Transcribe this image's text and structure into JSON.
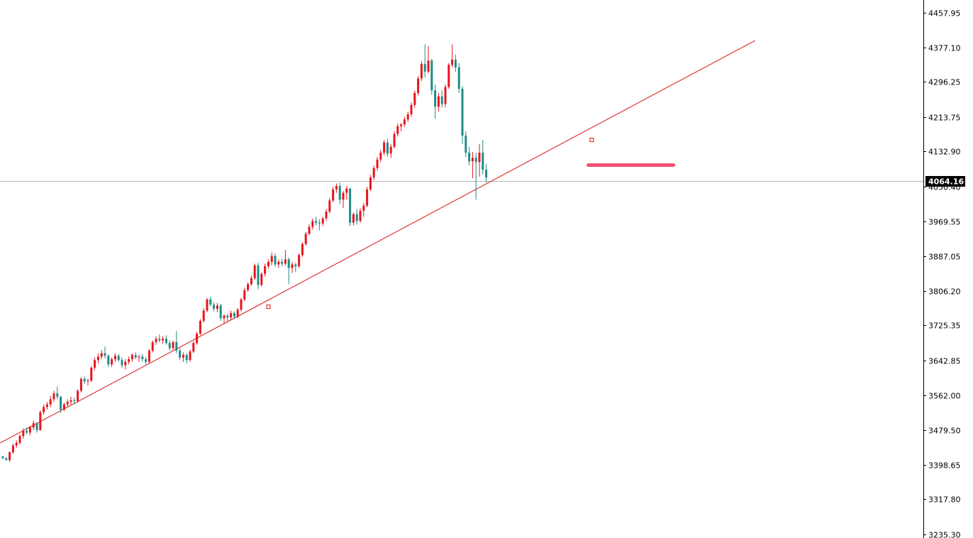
{
  "chart_data": {
    "type": "candlestick",
    "title": "",
    "xlabel": "",
    "ylabel": "",
    "ylim": [
      3235.3,
      4457.95
    ],
    "y_ticks": [
      "4457.95",
      "4377.10",
      "4296.25",
      "4213.75",
      "4132.90",
      "4050.40",
      "3969.55",
      "3887.05",
      "3806.20",
      "3725.35",
      "3642.85",
      "3562.00",
      "3479.50",
      "3398.65",
      "3317.80",
      "3235.30"
    ],
    "current_price": "4064.16",
    "grid": false,
    "colors": {
      "up": "#e8141c",
      "down": "#1e8c87",
      "trendline": "#d81414",
      "support": "#f0506e",
      "price_line": "#b4b4b4",
      "tag_bg": "#000000"
    },
    "candles": [
      [
        3418,
        3420,
        3412,
        3414
      ],
      [
        3414,
        3416,
        3408,
        3410
      ],
      [
        3410,
        3430,
        3405,
        3428
      ],
      [
        3428,
        3448,
        3424,
        3444
      ],
      [
        3444,
        3456,
        3438,
        3450
      ],
      [
        3450,
        3470,
        3446,
        3466
      ],
      [
        3466,
        3484,
        3460,
        3478
      ],
      [
        3478,
        3486,
        3470,
        3474
      ],
      [
        3474,
        3490,
        3468,
        3486
      ],
      [
        3486,
        3502,
        3480,
        3496
      ],
      [
        3496,
        3498,
        3474,
        3480
      ],
      [
        3480,
        3526,
        3478,
        3522
      ],
      [
        3522,
        3540,
        3516,
        3534
      ],
      [
        3534,
        3546,
        3528,
        3540
      ],
      [
        3540,
        3560,
        3534,
        3552
      ],
      [
        3552,
        3572,
        3546,
        3566
      ],
      [
        3566,
        3582,
        3552,
        3558
      ],
      [
        3558,
        3560,
        3520,
        3528
      ],
      [
        3528,
        3544,
        3524,
        3540
      ],
      [
        3540,
        3552,
        3534,
        3546
      ],
      [
        3546,
        3558,
        3540,
        3550
      ],
      [
        3550,
        3556,
        3540,
        3548
      ],
      [
        3548,
        3576,
        3544,
        3572
      ],
      [
        3572,
        3604,
        3568,
        3600
      ],
      [
        3600,
        3606,
        3588,
        3594
      ],
      [
        3594,
        3600,
        3584,
        3596
      ],
      [
        3596,
        3630,
        3592,
        3626
      ],
      [
        3626,
        3650,
        3620,
        3644
      ],
      [
        3644,
        3660,
        3636,
        3652
      ],
      [
        3652,
        3668,
        3646,
        3660
      ],
      [
        3660,
        3676,
        3648,
        3654
      ],
      [
        3654,
        3658,
        3628,
        3634
      ],
      [
        3634,
        3650,
        3628,
        3646
      ],
      [
        3646,
        3660,
        3640,
        3654
      ],
      [
        3654,
        3658,
        3640,
        3644
      ],
      [
        3644,
        3650,
        3626,
        3632
      ],
      [
        3632,
        3646,
        3622,
        3640
      ],
      [
        3640,
        3652,
        3634,
        3646
      ],
      [
        3646,
        3660,
        3640,
        3656
      ],
      [
        3656,
        3662,
        3646,
        3650
      ],
      [
        3650,
        3656,
        3640,
        3652
      ],
      [
        3652,
        3658,
        3640,
        3646
      ],
      [
        3646,
        3652,
        3634,
        3640
      ],
      [
        3640,
        3670,
        3636,
        3666
      ],
      [
        3666,
        3690,
        3662,
        3686
      ],
      [
        3686,
        3700,
        3680,
        3694
      ],
      [
        3694,
        3704,
        3686,
        3690
      ],
      [
        3690,
        3700,
        3682,
        3694
      ],
      [
        3694,
        3702,
        3680,
        3684
      ],
      [
        3684,
        3690,
        3666,
        3672
      ],
      [
        3672,
        3690,
        3668,
        3686
      ],
      [
        3686,
        3712,
        3660,
        3666
      ],
      [
        3666,
        3672,
        3644,
        3650
      ],
      [
        3650,
        3662,
        3640,
        3656
      ],
      [
        3656,
        3660,
        3636,
        3644
      ],
      [
        3644,
        3668,
        3640,
        3664
      ],
      [
        3664,
        3688,
        3660,
        3684
      ],
      [
        3684,
        3710,
        3680,
        3706
      ],
      [
        3706,
        3740,
        3702,
        3736
      ],
      [
        3736,
        3766,
        3732,
        3760
      ],
      [
        3760,
        3790,
        3756,
        3786
      ],
      [
        3786,
        3792,
        3770,
        3774
      ],
      [
        3774,
        3780,
        3758,
        3764
      ],
      [
        3764,
        3778,
        3756,
        3772
      ],
      [
        3772,
        3776,
        3736,
        3742
      ],
      [
        3742,
        3752,
        3728,
        3748
      ],
      [
        3748,
        3752,
        3734,
        3744
      ],
      [
        3744,
        3760,
        3738,
        3754
      ],
      [
        3754,
        3758,
        3740,
        3746
      ],
      [
        3746,
        3766,
        3742,
        3762
      ],
      [
        3762,
        3790,
        3758,
        3786
      ],
      [
        3786,
        3814,
        3782,
        3808
      ],
      [
        3808,
        3826,
        3804,
        3822
      ],
      [
        3822,
        3842,
        3818,
        3836
      ],
      [
        3836,
        3870,
        3832,
        3866
      ],
      [
        3866,
        3872,
        3810,
        3820
      ],
      [
        3820,
        3850,
        3816,
        3846
      ],
      [
        3846,
        3870,
        3840,
        3864
      ],
      [
        3864,
        3880,
        3858,
        3874
      ],
      [
        3874,
        3896,
        3866,
        3888
      ],
      [
        3888,
        3894,
        3862,
        3868
      ],
      [
        3868,
        3880,
        3860,
        3874
      ],
      [
        3874,
        3882,
        3864,
        3870
      ],
      [
        3870,
        3902,
        3866,
        3880
      ],
      [
        3880,
        3884,
        3822,
        3860
      ],
      [
        3860,
        3874,
        3848,
        3868
      ],
      [
        3868,
        3872,
        3850,
        3864
      ],
      [
        3864,
        3894,
        3860,
        3890
      ],
      [
        3890,
        3920,
        3886,
        3916
      ],
      [
        3916,
        3944,
        3912,
        3940
      ],
      [
        3940,
        3962,
        3936,
        3956
      ],
      [
        3956,
        3976,
        3950,
        3970
      ],
      [
        3970,
        3980,
        3960,
        3966
      ],
      [
        3966,
        3974,
        3948,
        3964
      ],
      [
        3964,
        3980,
        3958,
        3976
      ],
      [
        3976,
        3998,
        3970,
        3992
      ],
      [
        3992,
        4024,
        3988,
        4018
      ],
      [
        4018,
        4050,
        4014,
        4044
      ],
      [
        4044,
        4058,
        4036,
        4052
      ],
      [
        4052,
        4060,
        4010,
        4020
      ],
      [
        4020,
        4040,
        4000,
        4036
      ],
      [
        4036,
        4052,
        4020,
        4046
      ],
      [
        4046,
        4048,
        3958,
        3966
      ],
      [
        3966,
        3990,
        3960,
        3986
      ],
      [
        3986,
        3998,
        3962,
        3970
      ],
      [
        3970,
        4000,
        3966,
        3994
      ],
      [
        3994,
        4012,
        3980,
        4006
      ],
      [
        4006,
        4050,
        4002,
        4044
      ],
      [
        4044,
        4078,
        4040,
        4072
      ],
      [
        4072,
        4100,
        4066,
        4094
      ],
      [
        4094,
        4120,
        4088,
        4114
      ],
      [
        4114,
        4136,
        4108,
        4130
      ],
      [
        4130,
        4160,
        4124,
        4154
      ],
      [
        4154,
        4162,
        4120,
        4128
      ],
      [
        4128,
        4150,
        4118,
        4144
      ],
      [
        4144,
        4180,
        4140,
        4174
      ],
      [
        4174,
        4198,
        4168,
        4192
      ],
      [
        4192,
        4200,
        4180,
        4196
      ],
      [
        4196,
        4214,
        4190,
        4208
      ],
      [
        4208,
        4226,
        4202,
        4220
      ],
      [
        4220,
        4248,
        4214,
        4242
      ],
      [
        4242,
        4276,
        4236,
        4270
      ],
      [
        4270,
        4310,
        4264,
        4304
      ],
      [
        4304,
        4344,
        4298,
        4338
      ],
      [
        4338,
        4384,
        4306,
        4320
      ],
      [
        4320,
        4380,
        4316,
        4346
      ],
      [
        4346,
        4350,
        4266,
        4276
      ],
      [
        4276,
        4290,
        4210,
        4238
      ],
      [
        4238,
        4270,
        4226,
        4262
      ],
      [
        4262,
        4276,
        4236,
        4244
      ],
      [
        4244,
        4290,
        4236,
        4284
      ],
      [
        4284,
        4340,
        4280,
        4336
      ],
      [
        4336,
        4384,
        4330,
        4348
      ],
      [
        4348,
        4360,
        4320,
        4330
      ],
      [
        4330,
        4340,
        4270,
        4280
      ],
      [
        4280,
        4286,
        4150,
        4170
      ],
      [
        4170,
        4180,
        4120,
        4130
      ],
      [
        4130,
        4144,
        4100,
        4110
      ],
      [
        4110,
        4132,
        4070,
        4118
      ],
      [
        4118,
        4130,
        4020,
        4108
      ],
      [
        4108,
        4150,
        4074,
        4130
      ],
      [
        4130,
        4160,
        4080,
        4090
      ],
      [
        4090,
        4104,
        4060,
        4072
      ]
    ],
    "trendline": {
      "from": [
        -16,
        3385
      ],
      "to": [
        221,
        4393
      ],
      "anchors": [
        [
          -12,
          3385
        ],
        [
          78,
          3769
        ],
        [
          173,
          4160
        ]
      ]
    },
    "support_level": {
      "price": 4101,
      "from_index": 172,
      "to_index": 197
    }
  }
}
